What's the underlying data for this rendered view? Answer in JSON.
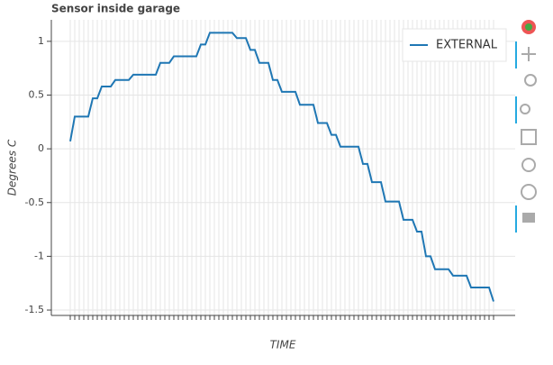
{
  "chart_data": {
    "type": "line",
    "title": "Sensor inside garage",
    "xlabel": "TIME",
    "ylabel": "Degrees C",
    "categories": [
      null,
      null,
      null,
      null,
      null,
      null,
      null,
      null,
      null,
      null,
      null,
      null,
      null,
      null,
      null,
      null,
      null,
      null,
      null,
      null,
      null,
      null,
      null,
      null,
      null,
      null,
      null,
      null,
      null,
      null,
      null,
      null,
      null,
      null,
      null,
      null,
      null,
      null,
      null,
      null,
      null,
      null,
      null,
      null,
      null,
      null,
      null,
      null,
      null,
      null,
      null,
      null,
      null,
      null,
      null,
      null,
      null,
      null,
      null,
      null,
      null,
      null,
      null,
      null,
      null,
      null,
      null,
      null,
      null,
      null,
      null,
      null,
      null,
      null,
      null,
      null,
      null,
      null,
      null,
      null,
      null,
      null,
      null,
      null,
      null,
      null,
      null,
      null,
      null,
      null,
      null,
      null,
      null,
      null,
      null
    ],
    "series": [
      {
        "name": "EXTERNAL",
        "color": "#1f77b4",
        "values": [
          0.07,
          0.3,
          0.3,
          0.3,
          0.3,
          0.47,
          0.47,
          0.58,
          0.58,
          0.58,
          0.64,
          0.64,
          0.64,
          0.64,
          0.69,
          0.69,
          0.69,
          0.69,
          0.69,
          0.69,
          0.8,
          0.8,
          0.8,
          0.86,
          0.86,
          0.86,
          0.86,
          0.86,
          0.86,
          0.97,
          0.97,
          1.08,
          1.08,
          1.08,
          1.08,
          1.08,
          1.08,
          1.03,
          1.03,
          1.03,
          0.92,
          0.92,
          0.8,
          0.8,
          0.8,
          0.64,
          0.64,
          0.53,
          0.53,
          0.53,
          0.53,
          0.41,
          0.41,
          0.41,
          0.41,
          0.24,
          0.24,
          0.24,
          0.13,
          0.13,
          0.02,
          0.02,
          0.02,
          0.02,
          0.02,
          -0.14,
          -0.14,
          -0.31,
          -0.31,
          -0.31,
          -0.49,
          -0.49,
          -0.49,
          -0.49,
          -0.66,
          -0.66,
          -0.66,
          -0.77,
          -0.77,
          -1.0,
          -1.0,
          -1.12,
          -1.12,
          -1.12,
          -1.12,
          -1.18,
          -1.18,
          -1.18,
          -1.18,
          -1.29,
          -1.29,
          -1.29,
          -1.29,
          -1.29,
          -1.42
        ]
      }
    ],
    "ylim": [
      -1.55,
      1.2
    ],
    "yticks": [
      1,
      0.5,
      0,
      -0.5,
      -1,
      -1.5
    ],
    "grid": true,
    "legend": "top-right"
  }
}
